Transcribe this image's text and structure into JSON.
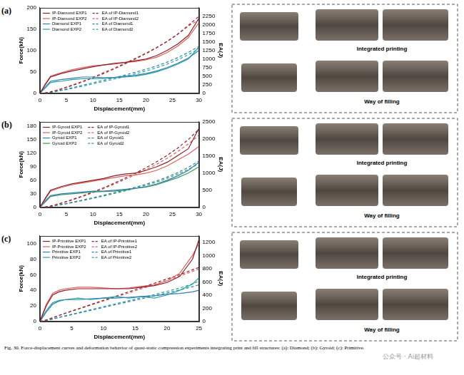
{
  "chart_data": [
    {
      "type": "line",
      "panel": "(a)",
      "x_label": "Displacement(mm)",
      "y_label": "Force(kN)",
      "y2_label": "EA(J)",
      "x": [
        0,
        1,
        2,
        3,
        4,
        6,
        8,
        10,
        12,
        14,
        16,
        18,
        20,
        22,
        24,
        26,
        28,
        30
      ],
      "xlim": [
        0,
        30
      ],
      "xticks": [
        0,
        5,
        10,
        15,
        20,
        25,
        30
      ],
      "ylim": [
        0,
        200
      ],
      "yticks": [
        0,
        50,
        100,
        150,
        200
      ],
      "y2lim": [
        0,
        2500
      ],
      "y2ticks": [
        0,
        250,
        500,
        750,
        1000,
        1250,
        1500,
        1750,
        2000,
        2250
      ],
      "grid": false,
      "legend": "upper left",
      "series": [
        {
          "name": "IP-Diamond EXP1",
          "color": "#8b1e2a",
          "line_style": "solid",
          "values": [
            0,
            20,
            38,
            42,
            46,
            52,
            57,
            62,
            66,
            70,
            72,
            76,
            80,
            88,
            100,
            115,
            135,
            175
          ]
        },
        {
          "name": "IP-Diamond EXP2",
          "color": "#e0605a",
          "line_style": "solid",
          "values": [
            0,
            22,
            40,
            44,
            48,
            55,
            60,
            64,
            66,
            68,
            72,
            74,
            78,
            84,
            95,
            110,
            130,
            165
          ]
        },
        {
          "name": "Diamond EXP1",
          "color": "#2f7fb8",
          "line_style": "solid",
          "values": [
            0,
            15,
            28,
            30,
            32,
            35,
            38,
            38,
            36,
            37,
            40,
            42,
            46,
            52,
            60,
            70,
            82,
            100
          ]
        },
        {
          "name": "Diamond EXP2",
          "color": "#2aa59a",
          "line_style": "solid",
          "values": [
            0,
            12,
            25,
            27,
            28,
            32,
            34,
            34,
            35,
            36,
            38,
            40,
            44,
            50,
            58,
            68,
            80,
            108
          ]
        },
        {
          "name": "EA of IP-Diamond1",
          "color": "#8b1e2a",
          "line_style": "dashed",
          "axis": "y2",
          "values": [
            0,
            10,
            39,
            79,
            123,
            221,
            330,
            449,
            577,
            713,
            855,
            1003,
            1159,
            1327,
            1515,
            1730,
            1980,
            2250
          ]
        },
        {
          "name": "EA of IP-Diamond2",
          "color": "#e0605a",
          "line_style": "dashed",
          "axis": "y2",
          "values": [
            0,
            11,
            42,
            84,
            130,
            233,
            348,
            472,
            602,
            736,
            876,
            1022,
            1174,
            1336,
            1515,
            1720,
            1960,
            2150
          ]
        },
        {
          "name": "EA of Diamond1",
          "color": "#2f7fb8",
          "line_style": "dashed",
          "axis": "y2",
          "values": [
            0,
            8,
            30,
            59,
            90,
            157,
            230,
            306,
            380,
            453,
            530,
            612,
            700,
            798,
            910,
            1040,
            1192,
            1370
          ]
        },
        {
          "name": "EA of Diamond2",
          "color": "#2aa59a",
          "line_style": "dashed",
          "axis": "y2",
          "values": [
            0,
            6,
            25,
            51,
            79,
            139,
            205,
            273,
            342,
            413,
            487,
            565,
            649,
            743,
            851,
            977,
            1125,
            1300
          ]
        }
      ],
      "photo_labels": [
        "Integrated printing",
        "Way of filling"
      ]
    },
    {
      "type": "line",
      "panel": "(b)",
      "x_label": "Displacement(mm)",
      "y_label": "Force(kN)",
      "y2_label": "EA(J)",
      "x": [
        0,
        1,
        2,
        3,
        4,
        6,
        8,
        10,
        12,
        14,
        16,
        18,
        20,
        22,
        24,
        26,
        28,
        30
      ],
      "xlim": [
        0,
        30
      ],
      "xticks": [
        0,
        5,
        10,
        15,
        20,
        25,
        30
      ],
      "ylim": [
        0,
        190
      ],
      "yticks": [
        0,
        30,
        60,
        90,
        120,
        150,
        180
      ],
      "y2lim": [
        0,
        2500
      ],
      "y2ticks": [
        0,
        500,
        1000,
        1500,
        2000,
        2500
      ],
      "grid": false,
      "legend": "upper left",
      "series": [
        {
          "name": "IP-Gyroid EXP1",
          "color": "#8b1e2a",
          "line_style": "solid",
          "values": [
            0,
            20,
            38,
            42,
            46,
            52,
            56,
            60,
            64,
            70,
            74,
            76,
            82,
            90,
            100,
            115,
            130,
            175
          ]
        },
        {
          "name": "IP-Gyroid EXP2",
          "color": "#e0605a",
          "line_style": "solid",
          "values": [
            0,
            18,
            36,
            40,
            44,
            50,
            54,
            58,
            62,
            66,
            70,
            72,
            76,
            82,
            92,
            105,
            118,
            135
          ]
        },
        {
          "name": "Gyroid EXP1",
          "color": "#2f7fb8",
          "line_style": "solid",
          "values": [
            0,
            14,
            26,
            28,
            30,
            32,
            34,
            36,
            36,
            38,
            40,
            42,
            46,
            52,
            60,
            70,
            82,
            100
          ]
        },
        {
          "name": "Gyroid EXP2",
          "color": "#3a9a5a",
          "line_style": "solid",
          "values": [
            0,
            12,
            24,
            26,
            28,
            30,
            32,
            34,
            35,
            36,
            38,
            42,
            45,
            50,
            58,
            66,
            76,
            90
          ]
        },
        {
          "name": "EA of IP-Gyroid1",
          "color": "#8b1e2a",
          "line_style": "dashed",
          "axis": "y2",
          "values": [
            0,
            10,
            39,
            79,
            123,
            221,
            329,
            445,
            569,
            703,
            847,
            997,
            1155,
            1327,
            1517,
            1732,
            1977,
            2282
          ]
        },
        {
          "name": "EA of IP-Gyroid2",
          "color": "#e0605a",
          "line_style": "dashed",
          "axis": "y2",
          "values": [
            0,
            9,
            36,
            74,
            116,
            210,
            314,
            426,
            546,
            674,
            810,
            952,
            1100,
            1258,
            1432,
            1629,
            1852,
            2105
          ]
        },
        {
          "name": "EA of Gyroid1",
          "color": "#2f7fb8",
          "line_style": "dashed",
          "axis": "y2",
          "values": [
            0,
            7,
            27,
            54,
            83,
            145,
            211,
            281,
            353,
            427,
            505,
            587,
            675,
            773,
            885,
            1015,
            1167,
            1349
          ]
        },
        {
          "name": "EA of Gyroid2",
          "color": "#3a9a5a",
          "line_style": "dashed",
          "axis": "y2",
          "values": [
            0,
            6,
            24,
            49,
            76,
            134,
            196,
            262,
            331,
            402,
            476,
            556,
            643,
            738,
            846,
            970,
            1112,
            1278
          ]
        }
      ],
      "photo_labels": [
        "Integrated printing",
        "Way of filling"
      ]
    },
    {
      "type": "line",
      "panel": "(c)",
      "x_label": "Displacement(mm)",
      "y_label": "Force(kN)",
      "y2_label": "EA(J)",
      "x": [
        0,
        1,
        2,
        3,
        4,
        6,
        8,
        10,
        12,
        14,
        16,
        18,
        20,
        22,
        24,
        25
      ],
      "xlim": [
        0,
        25
      ],
      "xticks": [
        0,
        5,
        10,
        15,
        20,
        25
      ],
      "ylim": [
        0,
        110
      ],
      "yticks": [
        0,
        20,
        40,
        60,
        80,
        100
      ],
      "y2lim": [
        0,
        1300
      ],
      "y2ticks": [
        0,
        200,
        400,
        600,
        800,
        1000,
        1200
      ],
      "grid": false,
      "legend": "upper left",
      "series": [
        {
          "name": "IP-Primitive EXP1",
          "color": "#8b1e2a",
          "line_style": "solid",
          "values": [
            0,
            20,
            34,
            38,
            40,
            42,
            42,
            42,
            42,
            42,
            44,
            46,
            50,
            58,
            80,
            105
          ]
        },
        {
          "name": "IP-Primitive EXP2",
          "color": "#e0605a",
          "line_style": "solid",
          "values": [
            0,
            22,
            36,
            40,
            42,
            44,
            44,
            43,
            42,
            43,
            45,
            47,
            52,
            62,
            85,
            100
          ]
        },
        {
          "name": "Primitive EXP1",
          "color": "#2f7fb8",
          "line_style": "solid",
          "values": [
            0,
            12,
            22,
            26,
            28,
            28,
            29,
            30,
            30,
            31,
            32,
            33,
            35,
            36,
            38,
            40
          ]
        },
        {
          "name": "Primitive EXP2",
          "color": "#2aa59a",
          "line_style": "solid",
          "values": [
            0,
            14,
            24,
            27,
            28,
            30,
            28,
            30,
            32,
            30,
            32,
            30,
            34,
            40,
            48,
            56
          ]
        },
        {
          "name": "EA of IP-Primitive1",
          "color": "#8b1e2a",
          "line_style": "dashed",
          "axis": "y2",
          "values": [
            0,
            20,
            55,
            90,
            125,
            190,
            255,
            320,
            385,
            450,
            515,
            580,
            645,
            710,
            785,
            820
          ]
        },
        {
          "name": "EA of IP-Primitive2",
          "color": "#e0605a",
          "line_style": "dashed",
          "axis": "y2",
          "values": [
            0,
            22,
            56,
            90,
            122,
            185,
            248,
            310,
            372,
            434,
            496,
            558,
            622,
            690,
            760,
            795
          ]
        },
        {
          "name": "EA of Primitive1",
          "color": "#2f7fb8",
          "line_style": "dashed",
          "axis": "y2",
          "values": [
            0,
            12,
            35,
            58,
            80,
            124,
            168,
            212,
            256,
            300,
            344,
            388,
            432,
            478,
            528,
            555
          ]
        },
        {
          "name": "EA of Primitive2",
          "color": "#2aa59a",
          "line_style": "dashed",
          "axis": "y2",
          "values": [
            0,
            13,
            38,
            62,
            86,
            132,
            178,
            224,
            270,
            316,
            362,
            408,
            456,
            508,
            570,
            610
          ]
        }
      ],
      "photo_labels": [
        "Integrated printing",
        "Way of filling"
      ]
    }
  ],
  "caption": "Fig. 30. Force-displacement curves and deformation behavior of quasi-static compression experiments integrating print and fill structures: (a): Diamond; (b): Gyroid; (c): Primitive.",
  "watermark": "公众号 · Ai超材料"
}
